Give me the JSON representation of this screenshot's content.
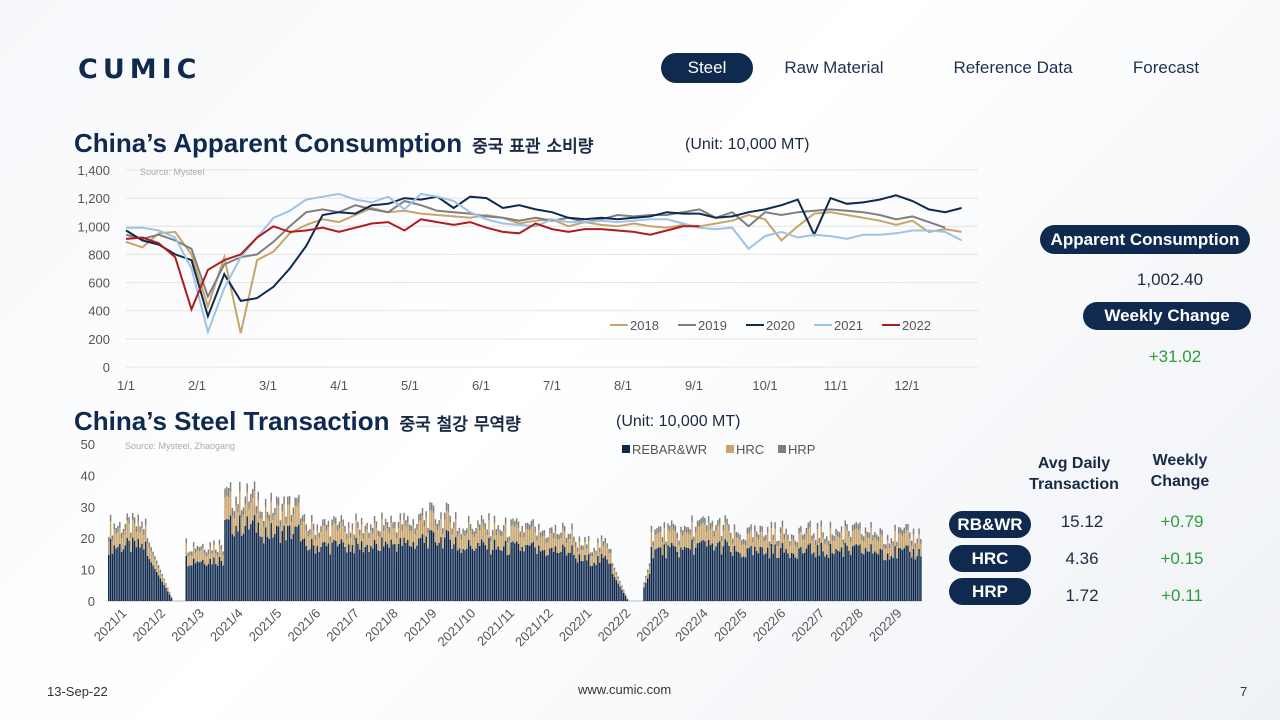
{
  "logo": "CUMIC",
  "nav": [
    "Steel",
    "Raw Material",
    "Reference Data",
    "Forecast"
  ],
  "chart1": {
    "title": "China’s Apparent Consumption",
    "title_ko": "중국 표관 소비량",
    "unit": "(Unit: 10,000 MT)",
    "source": "Source: Mysteel"
  },
  "chart2": {
    "title": "China’s Steel Transaction",
    "title_ko": "중국 철강 무역량",
    "unit": "(Unit: 10,000 MT)",
    "source": "Source: Mysteel, Zhaogang"
  },
  "panel": {
    "apparent_label": "Apparent Consumption",
    "apparent_value": "1,002.40",
    "weekly_label": "Weekly Change",
    "weekly_value": "+31.02",
    "avg_header": "Avg Daily Transaction",
    "change_header": "Weekly Change",
    "rows": [
      {
        "label": "RB&WR",
        "avg": "15.12",
        "change": "+0.79"
      },
      {
        "label": "HRC",
        "avg": "4.36",
        "change": "+0.15"
      },
      {
        "label": "HRP",
        "avg": "1.72",
        "change": "+0.11"
      }
    ]
  },
  "footer": {
    "date": "13-Sep-22",
    "url": "www.cumic.com",
    "page": "7"
  },
  "colors": {
    "navy": "#0f2a4e",
    "gold": "#c8a46a",
    "gray": "#7f7f7f",
    "lightblue": "#9dc3e6",
    "red": "#b01c1c",
    "green": "#2e9b3c"
  },
  "chart_data": [
    {
      "type": "line",
      "x_ticks": [
        "1/1",
        "2/1",
        "3/1",
        "4/1",
        "5/1",
        "6/1",
        "7/1",
        "8/1",
        "9/1",
        "10/1",
        "11/1",
        "12/1"
      ],
      "ylim": [
        0,
        1400
      ],
      "y_ticks": [
        0,
        200,
        400,
        600,
        800,
        1000,
        1200,
        1400
      ],
      "legend_position": "bottom-right",
      "series": [
        {
          "name": "2018",
          "color": "#c8a46a",
          "points": [
            [
              0,
              890
            ],
            [
              2,
              850
            ],
            [
              4,
              950
            ],
            [
              6,
              960
            ],
            [
              8,
              800
            ],
            [
              10,
              430
            ],
            [
              12,
              780
            ],
            [
              14,
              240
            ],
            [
              16,
              760
            ],
            [
              18,
              820
            ],
            [
              20,
              950
            ],
            [
              22,
              1010
            ],
            [
              24,
              1050
            ],
            [
              26,
              1030
            ],
            [
              28,
              1080
            ],
            [
              30,
              1130
            ],
            [
              32,
              1100
            ],
            [
              34,
              1110
            ],
            [
              36,
              1090
            ],
            [
              38,
              1080
            ],
            [
              40,
              1070
            ],
            [
              42,
              1060
            ],
            [
              44,
              1080
            ],
            [
              46,
              1060
            ],
            [
              48,
              1020
            ],
            [
              50,
              1040
            ],
            [
              52,
              1050
            ],
            [
              54,
              1000
            ],
            [
              56,
              1030
            ],
            [
              58,
              1010
            ],
            [
              60,
              1000
            ],
            [
              62,
              1020
            ],
            [
              64,
              1000
            ],
            [
              66,
              990
            ],
            [
              68,
              1010
            ],
            [
              70,
              1000
            ],
            [
              72,
              1020
            ],
            [
              74,
              1040
            ],
            [
              76,
              1080
            ],
            [
              78,
              1050
            ],
            [
              80,
              900
            ],
            [
              82,
              1000
            ],
            [
              84,
              1090
            ],
            [
              86,
              1100
            ],
            [
              88,
              1080
            ],
            [
              90,
              1060
            ],
            [
              92,
              1040
            ],
            [
              94,
              1010
            ],
            [
              96,
              1040
            ],
            [
              98,
              960
            ],
            [
              100,
              980
            ],
            [
              102,
              960
            ]
          ]
        },
        {
          "name": "2019",
          "color": "#7f7f7f",
          "points": [
            [
              0,
              940
            ],
            [
              2,
              910
            ],
            [
              4,
              940
            ],
            [
              6,
              900
            ],
            [
              8,
              840
            ],
            [
              10,
              500
            ],
            [
              12,
              730
            ],
            [
              14,
              780
            ],
            [
              16,
              800
            ],
            [
              18,
              890
            ],
            [
              20,
              1000
            ],
            [
              22,
              1100
            ],
            [
              24,
              1120
            ],
            [
              26,
              1100
            ],
            [
              28,
              1150
            ],
            [
              30,
              1120
            ],
            [
              32,
              1100
            ],
            [
              34,
              1180
            ],
            [
              36,
              1150
            ],
            [
              38,
              1110
            ],
            [
              40,
              1100
            ],
            [
              42,
              1090
            ],
            [
              44,
              1070
            ],
            [
              46,
              1060
            ],
            [
              48,
              1040
            ],
            [
              50,
              1060
            ],
            [
              52,
              1040
            ],
            [
              54,
              1060
            ],
            [
              56,
              1030
            ],
            [
              58,
              1050
            ],
            [
              60,
              1080
            ],
            [
              62,
              1070
            ],
            [
              64,
              1080
            ],
            [
              66,
              1080
            ],
            [
              68,
              1100
            ],
            [
              70,
              1120
            ],
            [
              72,
              1060
            ],
            [
              74,
              1100
            ],
            [
              76,
              1000
            ],
            [
              78,
              1100
            ],
            [
              80,
              1080
            ],
            [
              82,
              1100
            ],
            [
              84,
              1110
            ],
            [
              86,
              1120
            ],
            [
              88,
              1110
            ],
            [
              90,
              1100
            ],
            [
              92,
              1080
            ],
            [
              94,
              1050
            ],
            [
              96,
              1070
            ],
            [
              98,
              1030
            ],
            [
              100,
              990
            ]
          ]
        },
        {
          "name": "2020",
          "color": "#0f2a4e",
          "points": [
            [
              0,
              970
            ],
            [
              2,
              900
            ],
            [
              4,
              870
            ],
            [
              6,
              800
            ],
            [
              8,
              760
            ],
            [
              10,
              360
            ],
            [
              12,
              660
            ],
            [
              14,
              470
            ],
            [
              16,
              490
            ],
            [
              18,
              570
            ],
            [
              20,
              700
            ],
            [
              22,
              860
            ],
            [
              24,
              1080
            ],
            [
              26,
              1100
            ],
            [
              28,
              1090
            ],
            [
              30,
              1150
            ],
            [
              32,
              1160
            ],
            [
              34,
              1200
            ],
            [
              36,
              1190
            ],
            [
              38,
              1210
            ],
            [
              40,
              1130
            ],
            [
              42,
              1210
            ],
            [
              44,
              1200
            ],
            [
              46,
              1130
            ],
            [
              48,
              1150
            ],
            [
              50,
              1120
            ],
            [
              52,
              1100
            ],
            [
              54,
              1060
            ],
            [
              56,
              1050
            ],
            [
              58,
              1060
            ],
            [
              60,
              1050
            ],
            [
              62,
              1060
            ],
            [
              64,
              1070
            ],
            [
              66,
              1100
            ],
            [
              68,
              1090
            ],
            [
              70,
              1090
            ],
            [
              72,
              1060
            ],
            [
              74,
              1070
            ],
            [
              76,
              1100
            ],
            [
              78,
              1120
            ],
            [
              80,
              1150
            ],
            [
              82,
              1190
            ],
            [
              84,
              940
            ],
            [
              86,
              1200
            ],
            [
              88,
              1160
            ],
            [
              90,
              1170
            ],
            [
              92,
              1190
            ],
            [
              94,
              1220
            ],
            [
              96,
              1180
            ],
            [
              98,
              1120
            ],
            [
              100,
              1100
            ],
            [
              102,
              1130
            ]
          ]
        },
        {
          "name": "2021",
          "color": "#9dc3e6",
          "points": [
            [
              0,
              990
            ],
            [
              2,
              990
            ],
            [
              4,
              970
            ],
            [
              6,
              920
            ],
            [
              8,
              700
            ],
            [
              10,
              250
            ],
            [
              12,
              560
            ],
            [
              14,
              780
            ],
            [
              16,
              920
            ],
            [
              18,
              1060
            ],
            [
              20,
              1110
            ],
            [
              22,
              1190
            ],
            [
              24,
              1210
            ],
            [
              26,
              1230
            ],
            [
              28,
              1190
            ],
            [
              30,
              1170
            ],
            [
              32,
              1210
            ],
            [
              34,
              1120
            ],
            [
              36,
              1230
            ],
            [
              38,
              1210
            ],
            [
              40,
              1180
            ],
            [
              42,
              1100
            ],
            [
              44,
              1050
            ],
            [
              46,
              1020
            ],
            [
              48,
              1010
            ],
            [
              50,
              1000
            ],
            [
              52,
              1050
            ],
            [
              54,
              1030
            ],
            [
              56,
              1030
            ],
            [
              58,
              1040
            ],
            [
              60,
              1030
            ],
            [
              62,
              1040
            ],
            [
              64,
              1050
            ],
            [
              66,
              1050
            ],
            [
              68,
              1020
            ],
            [
              70,
              990
            ],
            [
              72,
              980
            ],
            [
              74,
              990
            ],
            [
              76,
              840
            ],
            [
              78,
              930
            ],
            [
              80,
              960
            ],
            [
              82,
              920
            ],
            [
              84,
              940
            ],
            [
              86,
              930
            ],
            [
              88,
              910
            ],
            [
              90,
              940
            ],
            [
              92,
              940
            ],
            [
              94,
              950
            ],
            [
              96,
              970
            ],
            [
              98,
              970
            ],
            [
              100,
              960
            ],
            [
              102,
              900
            ]
          ]
        },
        {
          "name": "2022",
          "color": "#b01c1c",
          "points": [
            [
              0,
              910
            ],
            [
              2,
              920
            ],
            [
              4,
              880
            ],
            [
              6,
              780
            ],
            [
              8,
              410
            ],
            [
              10,
              690
            ],
            [
              12,
              760
            ],
            [
              14,
              800
            ],
            [
              16,
              920
            ],
            [
              18,
              1000
            ],
            [
              20,
              960
            ],
            [
              22,
              970
            ],
            [
              24,
              990
            ],
            [
              26,
              960
            ],
            [
              28,
              990
            ],
            [
              30,
              1020
            ],
            [
              32,
              1030
            ],
            [
              34,
              970
            ],
            [
              36,
              1050
            ],
            [
              38,
              1030
            ],
            [
              40,
              1010
            ],
            [
              42,
              1030
            ],
            [
              44,
              990
            ],
            [
              46,
              960
            ],
            [
              48,
              950
            ],
            [
              50,
              1020
            ],
            [
              52,
              980
            ],
            [
              54,
              960
            ],
            [
              56,
              980
            ],
            [
              58,
              980
            ],
            [
              60,
              970
            ],
            [
              62,
              960
            ],
            [
              64,
              940
            ],
            [
              66,
              970
            ],
            [
              68,
              1000
            ],
            [
              70,
              1000
            ]
          ]
        }
      ]
    },
    {
      "type": "bar",
      "stacked": true,
      "ylim": [
        0,
        50
      ],
      "y_ticks": [
        0,
        10,
        20,
        30,
        40,
        50
      ],
      "x_ticks": [
        "2021/1",
        "2021/2",
        "2021/3",
        "2021/4",
        "2021/5",
        "2021/6",
        "2021/7",
        "2021/8",
        "2021/9",
        "2021/10",
        "2021/11",
        "2021/12",
        "2022/1",
        "2022/2",
        "2022/3",
        "2022/4",
        "2022/5",
        "2022/6",
        "2022/7",
        "2022/8",
        "2022/9"
      ],
      "legend_position": "top",
      "series_names": [
        "REBAR&WR",
        "HRC",
        "HRP"
      ],
      "series_colors": [
        "#0f2a4e",
        "#c8a46a",
        "#7f7f7f"
      ],
      "monthly_avg_total": [
        24,
        5,
        18,
        33,
        30,
        24,
        24,
        25,
        27,
        24,
        23,
        22,
        18,
        4,
        22,
        24,
        21,
        22,
        22,
        22,
        21
      ]
    }
  ]
}
